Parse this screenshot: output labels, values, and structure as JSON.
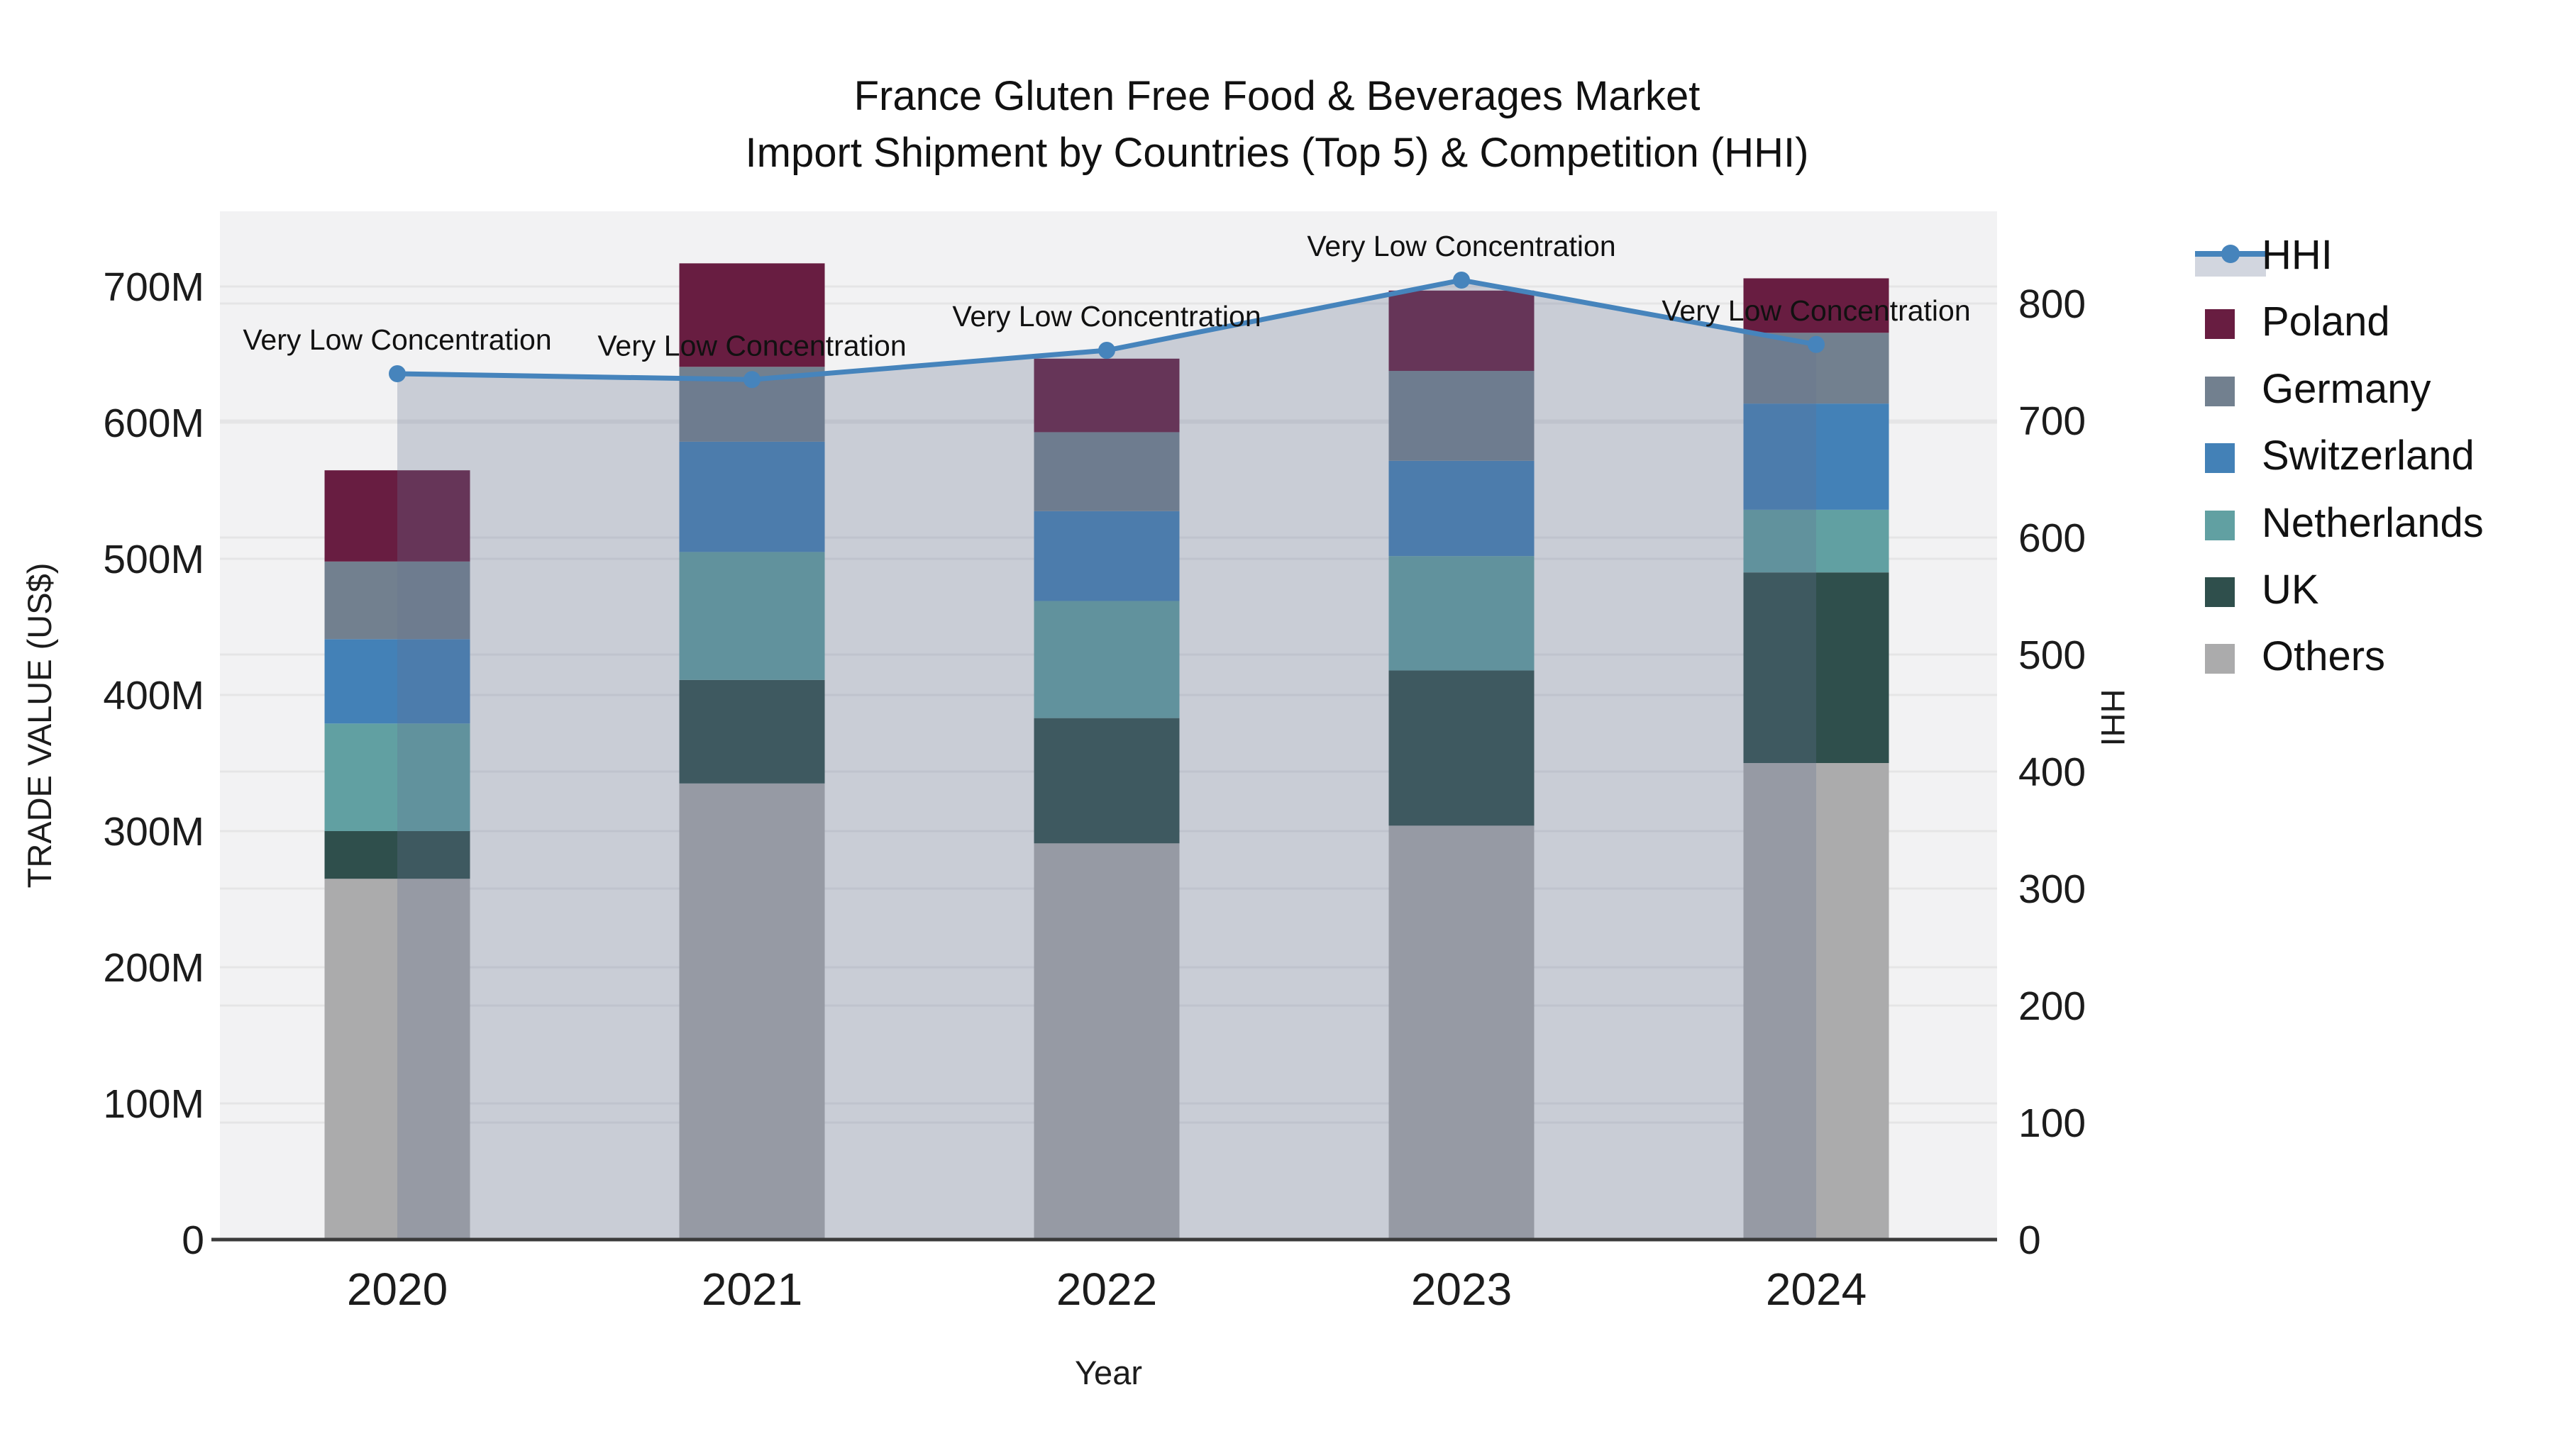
{
  "title": {
    "line1": "France Gluten Free Food & Beverages Market",
    "line2": "Import Shipment by Countries (Top 5) & Competition (HHI)"
  },
  "chart_data": {
    "type": "bar",
    "subtype": "stacked-bars-with-line-dual-axis",
    "title": "France Gluten Free Food & Beverages Market Import Shipment by Countries (Top 5) & Competition (HHI)",
    "xlabel": "Year",
    "ylabel_left": "TRADE VALUE (US$)",
    "ylabel_right": "HHI",
    "categories": [
      "2020",
      "2021",
      "2022",
      "2023",
      "2024"
    ],
    "series": [
      {
        "name": "Others",
        "color": "#ABABAC",
        "values": [
          265,
          335,
          291,
          304,
          350
        ]
      },
      {
        "name": "UK",
        "color": "#2F4F4C",
        "values": [
          35,
          76,
          92,
          114,
          140
        ]
      },
      {
        "name": "Netherlands",
        "color": "#61A0A2",
        "values": [
          79,
          94,
          86,
          84,
          46
        ]
      },
      {
        "name": "Switzerland",
        "color": "#4381B7",
        "values": [
          62,
          81,
          66,
          70,
          78
        ]
      },
      {
        "name": "Germany",
        "color": "#72808F",
        "values": [
          57,
          55,
          58,
          66,
          52
        ]
      },
      {
        "name": "Poland",
        "color": "#681D41",
        "values": [
          67,
          76,
          54,
          59,
          40
        ]
      }
    ],
    "line_series": {
      "name": "HHI",
      "color": "#4684BC",
      "area_fill": "rgba(101,115,146,0.29)",
      "values": [
        740,
        735,
        760,
        820,
        765
      ]
    },
    "annotations": [
      "Very Low Concentration",
      "Very Low Concentration",
      "Very Low Concentration",
      "Very Low Concentration",
      "Very Low Concentration"
    ],
    "yticks_left": [
      "0",
      "100M",
      "200M",
      "300M",
      "400M",
      "500M",
      "600M",
      "700M"
    ],
    "yticks_right": [
      "0",
      "100",
      "200",
      "300",
      "400",
      "500",
      "600",
      "700",
      "800"
    ],
    "ylim_left_millions": [
      0,
      755
    ],
    "ylim_right": [
      0,
      879
    ],
    "grid": true,
    "legend_position": "right"
  },
  "legend": {
    "items": [
      {
        "label": "HHI",
        "type": "line",
        "color": "#4684BC"
      },
      {
        "label": "Poland",
        "type": "box",
        "color": "#681D41"
      },
      {
        "label": "Germany",
        "type": "box",
        "color": "#72808F"
      },
      {
        "label": "Switzerland",
        "type": "box",
        "color": "#4381B7"
      },
      {
        "label": "Netherlands",
        "type": "box",
        "color": "#61A0A2"
      },
      {
        "label": "UK",
        "type": "box",
        "color": "#2F4F4C"
      },
      {
        "label": "Others",
        "type": "box",
        "color": "#ABABAC"
      }
    ]
  },
  "colors": {
    "plot_bg": "#F2F2F3",
    "grid_line": "rgba(0,0,0,0.05)",
    "axis_line": "#3B3B3B",
    "text": "#1C1C1C"
  }
}
